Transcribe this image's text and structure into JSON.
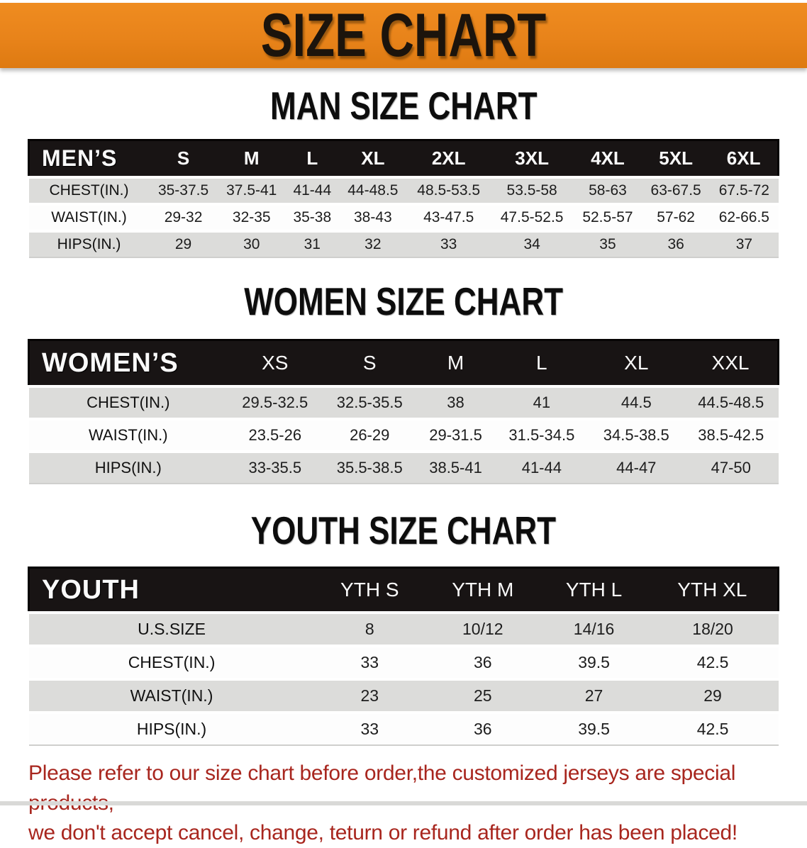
{
  "banner": {
    "title": "SIZE CHART",
    "bg_color": "#E8831A",
    "text_color": "#1C140C"
  },
  "sections": [
    {
      "id": "men",
      "title": "MAN SIZE CHART",
      "header_label": "MEN’S",
      "sizes": [
        "S",
        "M",
        "L",
        "XL",
        "2XL",
        "3XL",
        "4XL",
        "5XL",
        "6XL"
      ],
      "rows": [
        {
          "label": "CHEST(IN.)",
          "values": [
            "35-37.5",
            "37.5-41",
            "41-44",
            "44-48.5",
            "48.5-53.5",
            "53.5-58",
            "58-63",
            "63-67.5",
            "67.5-72"
          ]
        },
        {
          "label": "WAIST(IN.)",
          "values": [
            "29-32",
            "32-35",
            "35-38",
            "38-43",
            "43-47.5",
            "47.5-52.5",
            "52.5-57",
            "57-62",
            "62-66.5"
          ]
        },
        {
          "label": "HIPS(IN.)",
          "values": [
            "29",
            "30",
            "31",
            "32",
            "33",
            "34",
            "35",
            "36",
            "37"
          ]
        }
      ]
    },
    {
      "id": "women",
      "title": "WOMEN SIZE CHART",
      "header_label": "WOMEN’S",
      "sizes": [
        "XS",
        "S",
        "M",
        "L",
        "XL",
        "XXL"
      ],
      "rows": [
        {
          "label": "CHEST(IN.)",
          "values": [
            "29.5-32.5",
            "32.5-35.5",
            "38",
            "41",
            "44.5",
            "44.5-48.5"
          ]
        },
        {
          "label": "WAIST(IN.)",
          "values": [
            "23.5-26",
            "26-29",
            "29-31.5",
            "31.5-34.5",
            "34.5-38.5",
            "38.5-42.5"
          ]
        },
        {
          "label": "HIPS(IN.)",
          "values": [
            "33-35.5",
            "35.5-38.5",
            "38.5-41",
            "41-44",
            "44-47",
            "47-50"
          ]
        }
      ]
    },
    {
      "id": "youth",
      "title": "YOUTH SIZE CHART",
      "header_label": "YOUTH",
      "sizes": [
        "YTH S",
        "YTH M",
        "YTH L",
        "YTH XL"
      ],
      "rows": [
        {
          "label": "U.S.SIZE",
          "values": [
            "8",
            "10/12",
            "14/16",
            "18/20"
          ]
        },
        {
          "label": "CHEST(IN.)",
          "values": [
            "33",
            "36",
            "39.5",
            "42.5"
          ]
        },
        {
          "label": "WAIST(IN.)",
          "values": [
            "23",
            "25",
            "27",
            "29"
          ]
        },
        {
          "label": "HIPS(IN.)",
          "values": [
            "33",
            "36",
            "39.5",
            "42.5"
          ]
        }
      ]
    }
  ],
  "disclaimer": {
    "lines": [
      "Please refer to our size chart before order,the customized jerseys are special products,",
      "we don't accept cancel, change, teturn or refund after order has been placed!"
    ],
    "color": "#A8261E"
  },
  "colors": {
    "banner_orange": "#E8831A",
    "table_header_black": "#181414",
    "row_gray": "#DCDCDA",
    "row_white": "#FDFDFD",
    "disclaimer_red": "#A8261E"
  }
}
